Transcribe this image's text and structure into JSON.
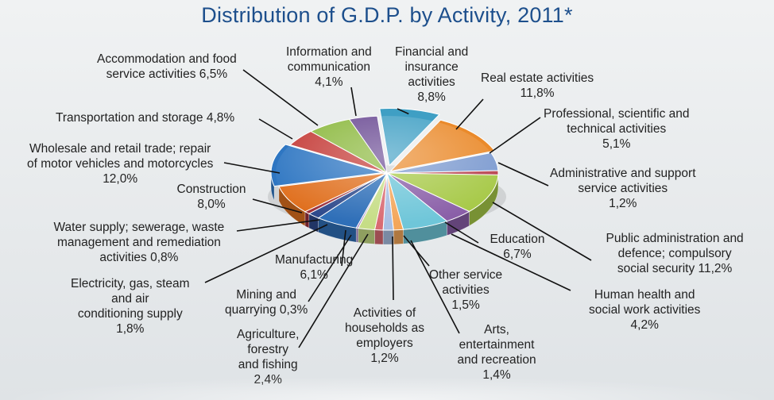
{
  "chart_data": {
    "type": "pie",
    "title": "Distribution of G.D.P. by Activity, 2011*",
    "slices": [
      {
        "label": "Financial and insurance activities",
        "value": 8.8,
        "display": "8,8%",
        "color": "#3f9fc4",
        "lines": [
          "Financial and",
          "insurance",
          "activities",
          "8,8%"
        ]
      },
      {
        "label": "Real estate activities",
        "value": 11.8,
        "display": "11,8%",
        "color": "#ea8a2b",
        "lines": [
          "Real estate activities",
          "11,8%"
        ]
      },
      {
        "label": "Professional, scientific and technical activities",
        "value": 5.1,
        "display": "5,1%",
        "color": "#7d9bd0",
        "lines": [
          "Professional, scientific and",
          "technical activities",
          "5,1%"
        ]
      },
      {
        "label": "Administrative and support service activities",
        "value": 1.2,
        "display": "1,2%",
        "color": "#b8434f",
        "lines": [
          "Administrative and support",
          "service activities",
          "1,2%"
        ]
      },
      {
        "label": "Public administration and defence; compulsory social security",
        "value": 11.2,
        "display": "11,2%",
        "color": "#a7c948",
        "lines": [
          "Public administration and",
          "defence; compulsory",
          "social security 11,2%"
        ]
      },
      {
        "label": "Human health and social work activities",
        "value": 4.2,
        "display": "4,2%",
        "color": "#8a5fa8",
        "lines": [
          "Human health and",
          "social work activities",
          "4,2%"
        ]
      },
      {
        "label": "Education",
        "value": 6.7,
        "display": "6,7%",
        "color": "#6fc6d9",
        "lines": [
          "Education",
          "6,7%"
        ]
      },
      {
        "label": "Arts, entertainment and recreation",
        "value": 1.4,
        "display": "1,4%",
        "color": "#f3a65a",
        "lines": [
          "Arts,",
          "entertainment",
          "and recreation",
          "1,4%"
        ]
      },
      {
        "label": "Other service activities",
        "value": 1.5,
        "display": "1,5%",
        "color": "#a9bfe3",
        "lines": [
          "Other service",
          "activities",
          "1,5%"
        ]
      },
      {
        "label": "Activities of households as employers",
        "value": 1.2,
        "display": "1,2%",
        "color": "#d96a72",
        "lines": [
          "Activities of",
          "households as",
          "employers",
          "1,2%"
        ]
      },
      {
        "label": "Agriculture, forestry and fishing",
        "value": 2.4,
        "display": "2,4%",
        "color": "#c6dd86",
        "lines": [
          "Agriculture,",
          "forestry",
          "and fishing",
          "2,4%"
        ]
      },
      {
        "label": "Mining and quarrying",
        "value": 0.3,
        "display": "0,3%",
        "color": "#a989c4",
        "lines": [
          "Mining and",
          "quarrying 0,3%"
        ]
      },
      {
        "label": "Manufacturing",
        "value": 6.1,
        "display": "6,1%",
        "color": "#2f6fb8",
        "lines": [
          "Manufacturing",
          "6,1%"
        ]
      },
      {
        "label": "Electricity, gas, steam and air conditioning supply",
        "value": 1.8,
        "display": "1,8%",
        "color": "#2e4a8c",
        "lines": [
          "Electricity, gas, steam",
          "and air",
          "conditioning supply",
          "1,8%"
        ]
      },
      {
        "label": "Water supply; sewerage, waste management and remediation activities",
        "value": 0.8,
        "display": "0,8%",
        "color": "#9b2f3a",
        "lines": [
          "Water supply; sewerage, waste",
          "management and remediation",
          "activities 0,8%"
        ]
      },
      {
        "label": "Construction",
        "value": 8.0,
        "display": "8,0%",
        "color": "#e0701f",
        "lines": [
          "Construction",
          "8,0%"
        ]
      },
      {
        "label": "Wholesale and retail trade; repair of motor vehicles and motorcycles",
        "value": 12.0,
        "display": "12,0%",
        "color": "#2e76c2",
        "lines": [
          "Wholesale and retail trade; repair",
          "of motor vehicles and motorcycles",
          "12,0%"
        ]
      },
      {
        "label": "Transportation and storage",
        "value": 4.8,
        "display": "4,8%",
        "color": "#c43a36",
        "lines": [
          "Transportation and storage 4,8%"
        ]
      },
      {
        "label": "Accommodation and food service activities",
        "value": 6.5,
        "display": "6,5%",
        "color": "#8bb83d",
        "lines": [
          "Accommodation and food",
          "service activities 6,5%"
        ]
      },
      {
        "label": "Information and communication",
        "value": 4.1,
        "display": "4,1%",
        "color": "#6a4a93",
        "lines": [
          "Information and",
          "communication",
          "4,1%"
        ]
      }
    ]
  }
}
